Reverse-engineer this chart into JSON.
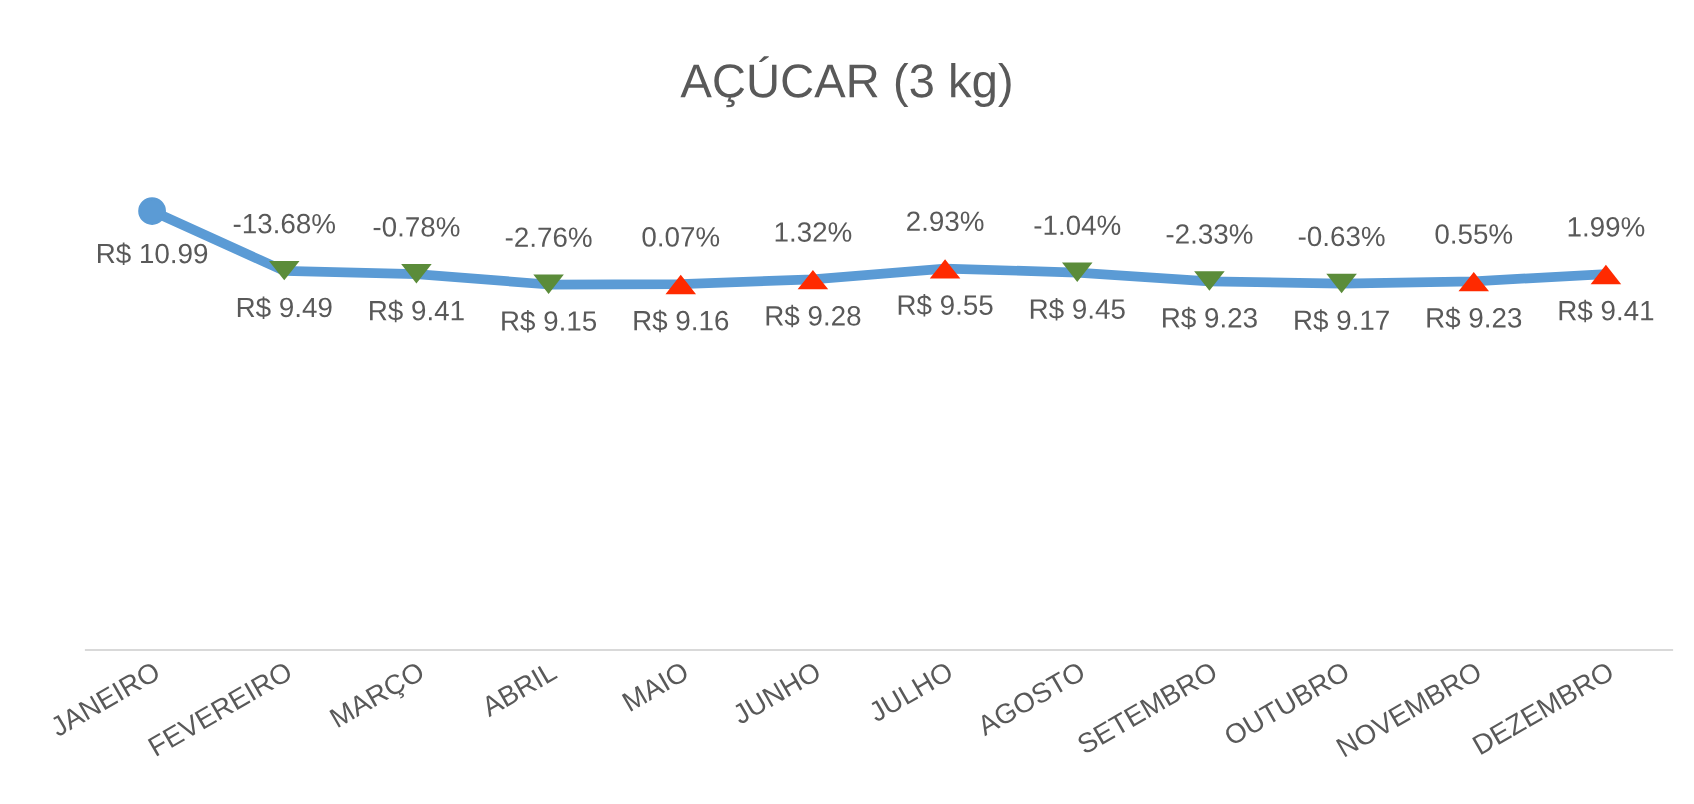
{
  "chart_data": {
    "type": "line",
    "title": "AÇÚCAR (3 kg)",
    "categories": [
      "JANEIRO",
      "FEVEREIRO",
      "MARÇO",
      "ABRIL",
      "MAIO",
      "JUNHO",
      "JULHO",
      "AGOSTO",
      "SETEMBRO",
      "OUTUBRO",
      "NOVEMBRO",
      "DEZEMBRO"
    ],
    "series": [
      {
        "color": "#5b9bd5",
        "values": [
          10.99,
          9.49,
          9.41,
          9.15,
          9.16,
          9.28,
          9.55,
          9.45,
          9.23,
          9.17,
          9.23,
          9.41
        ],
        "value_labels": [
          "R$ 10.99",
          "R$ 9.49",
          "R$ 9.41",
          "R$ 9.15",
          "R$ 9.16",
          "R$ 9.28",
          "R$ 9.55",
          "R$ 9.45",
          "R$ 9.23",
          "R$ 9.17",
          "R$ 9.23",
          "R$ 9.41"
        ],
        "colors": [
          "#5b9bd5",
          "#5b8c3a",
          "#5b8c3a",
          "#5b8c3a",
          "#ff2a00",
          "#ff2a00",
          "#ff2a00",
          "#5b8c3a",
          "#5b8c3a",
          "#5b8c3a",
          "#ff2a00",
          "#ff2a00"
        ]
      }
    ],
    "annotations": [
      {
        "text": "-13.68%",
        "x": "FEVEREIRO",
        "y": 9.49
      },
      {
        "text": "-0.78%",
        "x": "MARÇO",
        "y": 9.41
      },
      {
        "text": "-2.76%",
        "x": "ABRIL",
        "y": 9.15
      },
      {
        "text": "0.07%",
        "x": "MAIO",
        "y": 9.16
      },
      {
        "text": "1.32%",
        "x": "JUNHO",
        "y": 9.28
      },
      {
        "text": "2.93%",
        "x": "JULHO",
        "y": 9.55
      },
      {
        "text": "-1.04%",
        "x": "AGOSTO",
        "y": 9.45
      },
      {
        "text": "-2.33%",
        "x": "SETEMBRO",
        "y": 9.23
      },
      {
        "text": "-0.63%",
        "x": "OUTUBRO",
        "y": 9.17
      },
      {
        "text": "0.55%",
        "x": "NOVEMBRO",
        "y": 9.23
      },
      {
        "text": "1.99%",
        "x": "DEZEMBRO",
        "y": 9.41
      }
    ],
    "tick_labels": "x",
    "grid": false,
    "legend": false,
    "marker": "circle"
  }
}
